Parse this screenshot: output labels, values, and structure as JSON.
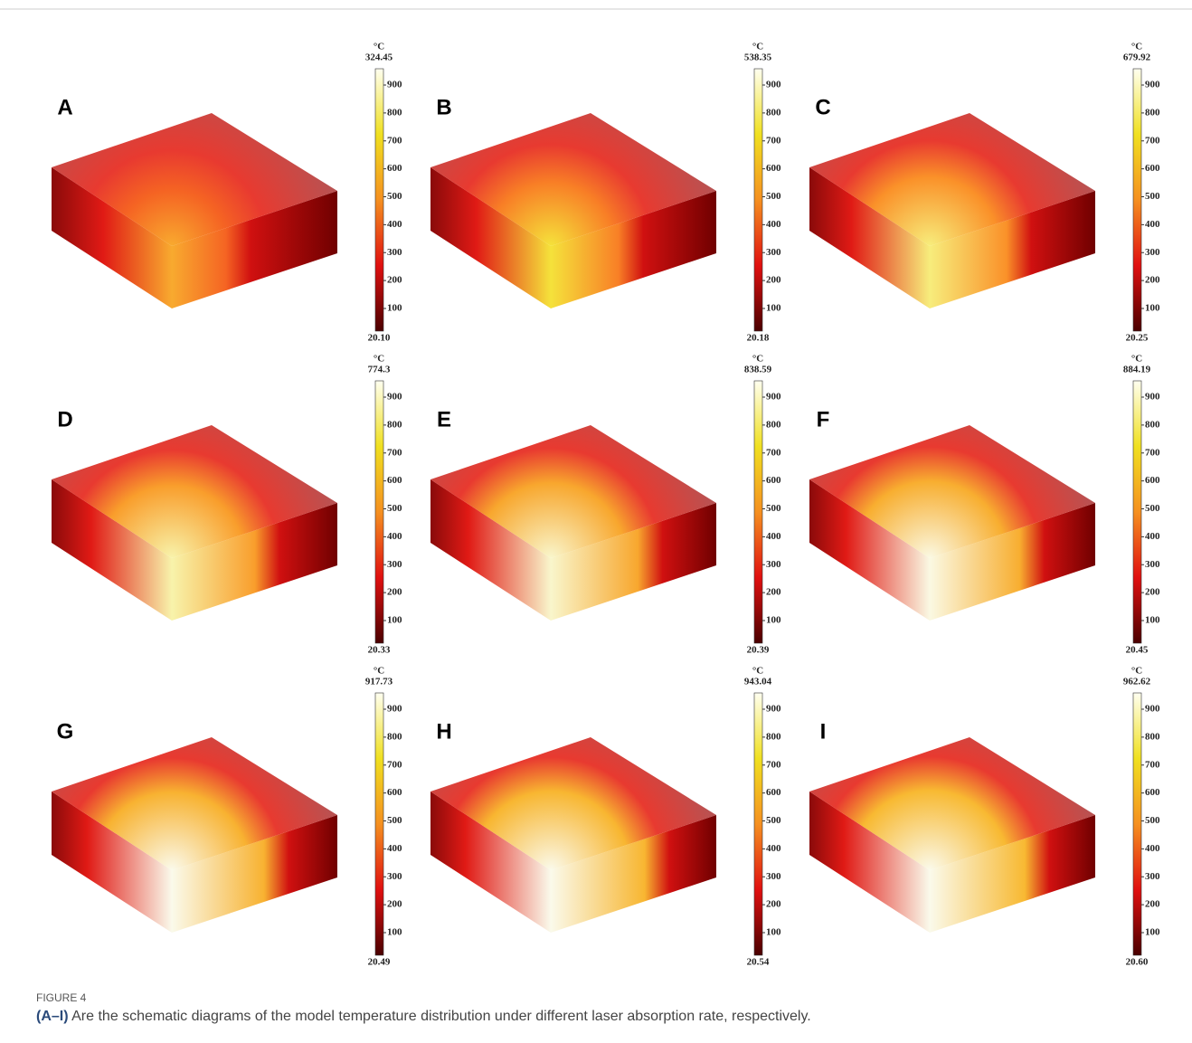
{
  "figure": {
    "unit": "°C",
    "colorbar_ticks": [
      100,
      200,
      300,
      400,
      500,
      600,
      700,
      800,
      900
    ],
    "panels": [
      {
        "label": "A",
        "max": "324.45",
        "min": "20.10"
      },
      {
        "label": "B",
        "max": "538.35",
        "min": "20.18"
      },
      {
        "label": "C",
        "max": "679.92",
        "min": "20.25"
      },
      {
        "label": "D",
        "max": "774.3",
        "min": "20.33"
      },
      {
        "label": "E",
        "max": "838.59",
        "min": "20.39"
      },
      {
        "label": "F",
        "max": "884.19",
        "min": "20.45"
      },
      {
        "label": "G",
        "max": "917.73",
        "min": "20.49"
      },
      {
        "label": "H",
        "max": "943.04",
        "min": "20.54"
      },
      {
        "label": "I",
        "max": "962.62",
        "min": "20.60"
      }
    ]
  },
  "caption": {
    "figure_label": "FIGURE 4",
    "label": "(A–I)",
    "text": "Are the schematic diagrams of the model temperature distribution under different laser absorption rate, respectively."
  }
}
